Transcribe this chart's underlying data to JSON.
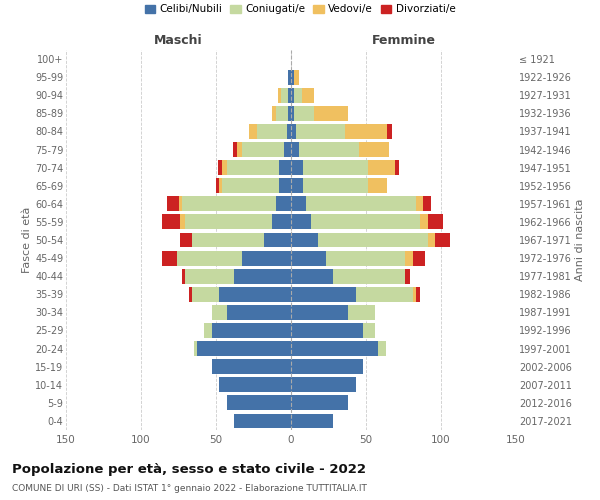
{
  "age_groups": [
    "0-4",
    "5-9",
    "10-14",
    "15-19",
    "20-24",
    "25-29",
    "30-34",
    "35-39",
    "40-44",
    "45-49",
    "50-54",
    "55-59",
    "60-64",
    "65-69",
    "70-74",
    "75-79",
    "80-84",
    "85-89",
    "90-94",
    "95-99",
    "100+"
  ],
  "birth_years": [
    "2017-2021",
    "2012-2016",
    "2007-2011",
    "2002-2006",
    "1997-2001",
    "1992-1996",
    "1987-1991",
    "1982-1986",
    "1977-1981",
    "1972-1976",
    "1967-1971",
    "1962-1966",
    "1957-1961",
    "1952-1956",
    "1947-1951",
    "1942-1946",
    "1937-1941",
    "1932-1936",
    "1927-1931",
    "1922-1926",
    "≤ 1921"
  ],
  "males": {
    "celibi": [
      38,
      43,
      48,
      53,
      63,
      53,
      43,
      48,
      38,
      33,
      18,
      13,
      10,
      8,
      8,
      5,
      3,
      2,
      2,
      2,
      0
    ],
    "coniugati": [
      0,
      0,
      0,
      0,
      2,
      5,
      10,
      18,
      33,
      43,
      48,
      58,
      63,
      38,
      35,
      28,
      20,
      8,
      5,
      0,
      0
    ],
    "vedovi": [
      0,
      0,
      0,
      0,
      0,
      0,
      0,
      0,
      0,
      0,
      0,
      3,
      2,
      2,
      3,
      3,
      5,
      3,
      2,
      0,
      0
    ],
    "divorziati": [
      0,
      0,
      0,
      0,
      0,
      0,
      0,
      2,
      2,
      10,
      8,
      12,
      8,
      2,
      3,
      3,
      0,
      0,
      0,
      0,
      0
    ]
  },
  "females": {
    "nubili": [
      28,
      38,
      43,
      48,
      58,
      48,
      38,
      43,
      28,
      23,
      18,
      13,
      10,
      8,
      8,
      5,
      3,
      2,
      2,
      2,
      0
    ],
    "coniugate": [
      0,
      0,
      0,
      0,
      5,
      8,
      18,
      38,
      48,
      53,
      73,
      73,
      73,
      43,
      43,
      40,
      33,
      13,
      5,
      0,
      0
    ],
    "vedove": [
      0,
      0,
      0,
      0,
      0,
      0,
      0,
      2,
      0,
      5,
      5,
      5,
      5,
      13,
      18,
      20,
      28,
      23,
      8,
      3,
      0
    ],
    "divorziate": [
      0,
      0,
      0,
      0,
      0,
      0,
      0,
      3,
      3,
      8,
      10,
      10,
      5,
      0,
      3,
      0,
      3,
      0,
      0,
      0,
      0
    ]
  },
  "colors": {
    "celibi": "#4472a8",
    "coniugati": "#c5d9a0",
    "vedovi": "#f0c060",
    "divorziati": "#cc2222"
  },
  "xlim": 150,
  "title": "Popolazione per età, sesso e stato civile - 2022",
  "subtitle": "COMUNE DI URI (SS) - Dati ISTAT 1° gennaio 2022 - Elaborazione TUTTITALIA.IT",
  "xlabel_left": "Maschi",
  "xlabel_right": "Femmine",
  "ylabel_left": "Fasce di età",
  "ylabel_right": "Anni di nascita",
  "legend_labels": [
    "Celibi/Nubili",
    "Coniugati/e",
    "Vedovi/e",
    "Divorziati/e"
  ],
  "background_color": "#ffffff",
  "grid_color": "#cccccc"
}
